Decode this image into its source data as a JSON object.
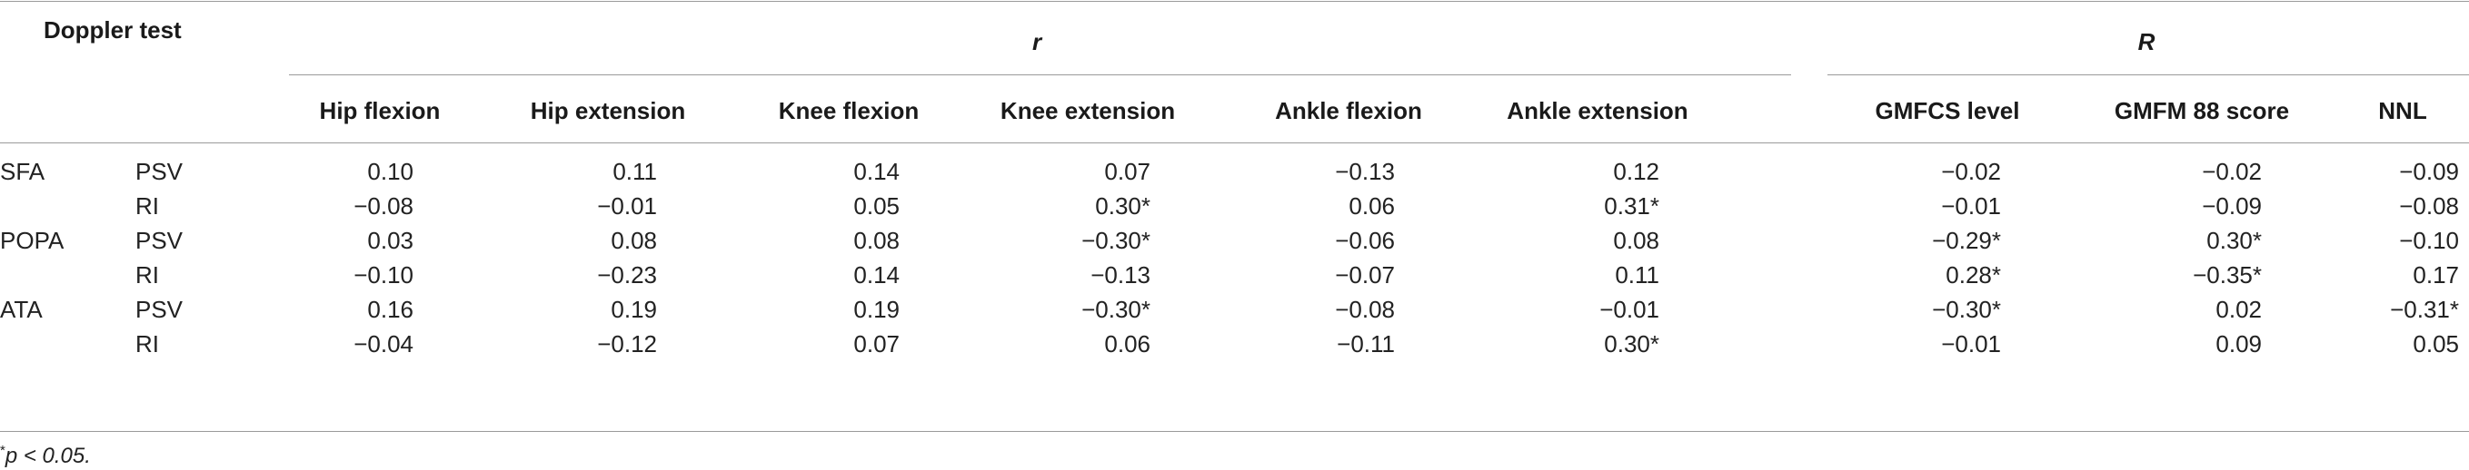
{
  "header": {
    "doppler_test": "Doppler test",
    "r_group": "r",
    "R_group": "R"
  },
  "columns": [
    "Hip flexion",
    "Hip extension",
    "Knee flexion",
    "Knee extension",
    "Ankle flexion",
    "Ankle extension",
    "GMFCS level",
    "GMFM 88 score",
    "NNL"
  ],
  "rows": [
    {
      "group": "SFA",
      "test": "PSV",
      "values": [
        "0.10",
        "0.11",
        "0.14",
        "0.07",
        "−0.13",
        "0.12",
        "−0.02",
        "−0.02",
        "−0.09"
      ]
    },
    {
      "group": "",
      "test": "RI",
      "values": [
        "−0.08",
        "−0.01",
        "0.05",
        "0.30*",
        "0.06",
        "0.31*",
        "−0.01",
        "−0.09",
        "−0.08"
      ]
    },
    {
      "group": "POPA",
      "test": "PSV",
      "values": [
        "0.03",
        "0.08",
        "0.08",
        "−0.30*",
        "−0.06",
        "0.08",
        "−0.29*",
        "0.30*",
        "−0.10"
      ]
    },
    {
      "group": "",
      "test": "RI",
      "values": [
        "−0.10",
        "−0.23",
        "0.14",
        "−0.13",
        "−0.07",
        "0.11",
        "0.28*",
        "−0.35*",
        "0.17"
      ]
    },
    {
      "group": "ATA",
      "test": "PSV",
      "values": [
        "0.16",
        "0.19",
        "0.19",
        "−0.30*",
        "−0.08",
        "−0.01",
        "−0.30*",
        "0.02",
        "−0.31*"
      ]
    },
    {
      "group": "",
      "test": "RI",
      "values": [
        "−0.04",
        "−0.12",
        "0.07",
        "0.06",
        "−0.11",
        "0.30*",
        "−0.01",
        "0.09",
        "0.05"
      ]
    }
  ],
  "footnote": {
    "marker": "*",
    "text": "p < 0.05."
  }
}
